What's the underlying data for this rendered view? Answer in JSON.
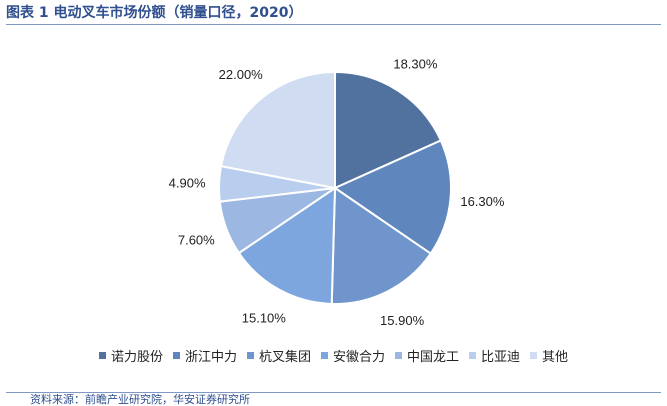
{
  "header": {
    "title": "图表 1 电动叉车市场份额（销量口径，2020）"
  },
  "footer": {
    "source": "资料来源：前瞻产业研究院，华安证券研究所"
  },
  "chart_data": {
    "type": "pie",
    "title": "",
    "series": [
      {
        "categories": [
          "诺力股份",
          "浙江中力",
          "杭叉集团",
          "安徽合力",
          "中国龙工",
          "比亚迪",
          "其他"
        ],
        "values": [
          18.3,
          16.3,
          15.9,
          15.1,
          7.6,
          4.9,
          22.0
        ],
        "labels": [
          "18.30%",
          "16.30%",
          "15.90%",
          "15.10%",
          "7.60%",
          "4.90%",
          "22.00%"
        ],
        "colors": [
          "#51729f",
          "#5f86bd",
          "#6f95cc",
          "#7da6df",
          "#9db7e3",
          "#b9cdee",
          "#d0dcf1"
        ]
      }
    ],
    "legend_position": "bottom",
    "start_angle_deg": 0,
    "direction": "clockwise"
  }
}
